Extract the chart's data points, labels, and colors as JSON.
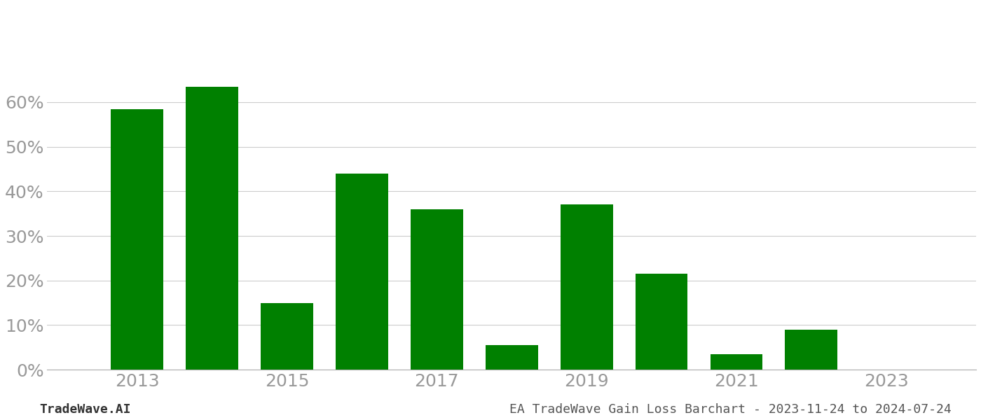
{
  "years": [
    2013,
    2014,
    2015,
    2016,
    2017,
    2018,
    2019,
    2020,
    2021,
    2022,
    2023
  ],
  "values": [
    0.585,
    0.635,
    0.15,
    0.44,
    0.36,
    0.055,
    0.37,
    0.215,
    0.035,
    0.09,
    0.001
  ],
  "bar_color": "#008000",
  "background_color": "#ffffff",
  "grid_color": "#cccccc",
  "axis_label_color": "#999999",
  "ytick_labels": [
    "0%",
    "10%",
    "20%",
    "30%",
    "40%",
    "50%",
    "60%"
  ],
  "ytick_values": [
    0.0,
    0.1,
    0.2,
    0.3,
    0.4,
    0.5,
    0.6
  ],
  "xtick_labels": [
    "2013",
    "2015",
    "2017",
    "2019",
    "2021",
    "2023"
  ],
  "xtick_values": [
    2013,
    2015,
    2017,
    2019,
    2021,
    2023
  ],
  "ylim": [
    0.0,
    0.72
  ],
  "xlim": [
    2011.8,
    2024.2
  ],
  "footer_left": "TradeWave.AI",
  "footer_right": "EA TradeWave Gain Loss Barchart - 2023-11-24 to 2024-07-24",
  "bar_width": 0.7,
  "tick_fontsize": 18,
  "footer_fontsize": 13
}
